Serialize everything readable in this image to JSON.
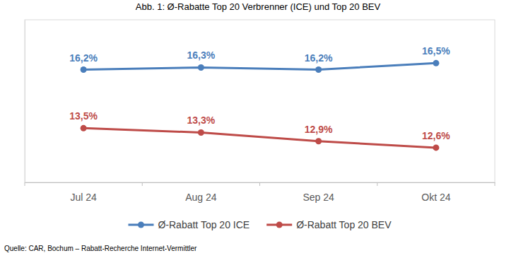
{
  "chart_data": {
    "type": "line",
    "title": "Abb. 1: Ø-Rabatte Top 20 Verbrenner (ICE) und Top 20 BEV",
    "source": "Quelle: CAR, Bochum – Rabatt-Recherche Internet-Vermittler",
    "categories": [
      "Jul 24",
      "Aug 24",
      "Sep 24",
      "Okt 24"
    ],
    "series": [
      {
        "name": "Ø-Rabatt Top 20 ICE",
        "color": "#4a7ebb",
        "marker": "circle",
        "values": [
          16.2,
          16.3,
          16.2,
          16.5
        ],
        "value_labels": [
          "16,2%",
          "16,3%",
          "16,2%",
          "16,5%"
        ]
      },
      {
        "name": "Ø-Rabatt Top 20 BEV",
        "color": "#be4b48",
        "marker": "circle",
        "values": [
          13.5,
          13.3,
          12.9,
          12.6
        ],
        "value_labels": [
          "13,5%",
          "13,3%",
          "12,9%",
          "12,6%"
        ]
      }
    ],
    "ylim": [
      11,
      18.5
    ],
    "tick_labels": "x",
    "grid": false,
    "legend": "bottom",
    "data_labels": true
  }
}
